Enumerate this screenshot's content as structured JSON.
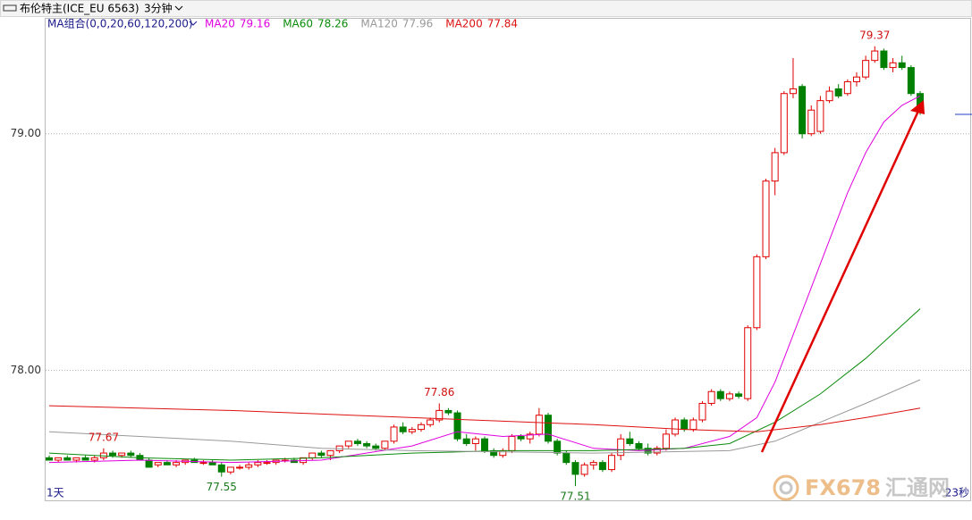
{
  "chart_data": {
    "type": "candlestick",
    "title": "布伦特主(ICE_EU 6563)",
    "period": "3分钟",
    "indicator": "MA组合(0,0,20,60,120,200)",
    "x_start_label": "1天",
    "x_end_label": "23秒",
    "watermark": "FX678",
    "watermark_cn": "汇通网",
    "up_color": "#e00000",
    "down_color": "#008000",
    "grid": true,
    "ylim": [
      77.45,
      79.49
    ],
    "yticks": [
      {
        "value": 78,
        "label": "78.00"
      },
      {
        "value": 79,
        "label": "79.00"
      }
    ],
    "open": [
      77.63,
      77.62,
      77.63,
      77.62,
      77.63,
      77.62,
      77.63,
      77.65,
      77.64,
      77.65,
      77.64,
      77.62,
      77.6,
      77.61,
      77.6,
      77.61,
      77.62,
      77.61,
      77.61,
      77.6,
      77.57,
      77.59,
      77.59,
      77.6,
      77.61,
      77.61,
      77.62,
      77.62,
      77.61,
      77.63,
      77.65,
      77.64,
      77.66,
      77.68,
      77.7,
      77.69,
      77.68,
      77.67,
      77.7,
      77.76,
      77.74,
      77.75,
      77.77,
      77.79,
      77.83,
      77.82,
      77.71,
      77.69,
      77.71,
      77.66,
      77.64,
      77.66,
      77.72,
      77.71,
      77.73,
      77.81,
      77.7,
      77.65,
      77.61,
      77.56,
      77.6,
      77.61,
      77.58,
      77.64,
      77.71,
      77.69,
      77.67,
      77.65,
      77.67,
      77.73,
      77.79,
      77.75,
      77.79,
      77.86,
      77.91,
      77.88,
      77.9,
      77.88,
      78.18,
      78.48,
      78.8,
      78.92,
      79.17,
      79.2,
      79.0,
      79.01,
      79.14,
      79.19,
      79.17,
      79.22,
      79.24,
      79.31,
      79.35,
      79.28,
      79.3,
      79.28,
      79.17
    ],
    "high": [
      77.64,
      77.63,
      77.64,
      77.63,
      77.64,
      77.64,
      77.67,
      77.66,
      77.65,
      77.66,
      77.65,
      77.63,
      77.61,
      77.62,
      77.62,
      77.62,
      77.63,
      77.62,
      77.62,
      77.61,
      77.59,
      77.6,
      77.61,
      77.62,
      77.62,
      77.62,
      77.63,
      77.63,
      77.63,
      77.65,
      77.66,
      77.66,
      77.68,
      77.7,
      77.71,
      77.7,
      77.69,
      77.7,
      77.77,
      77.78,
      77.76,
      77.78,
      77.8,
      77.86,
      77.84,
      77.83,
      77.73,
      77.72,
      77.72,
      77.67,
      77.67,
      77.73,
      77.73,
      77.74,
      77.84,
      77.82,
      77.71,
      77.66,
      77.62,
      77.61,
      77.62,
      77.62,
      77.65,
      77.73,
      77.74,
      77.7,
      77.69,
      77.68,
      77.75,
      77.8,
      77.8,
      77.8,
      77.87,
      77.92,
      77.92,
      77.91,
      77.91,
      78.19,
      78.49,
      78.81,
      78.94,
      79.18,
      79.32,
      79.21,
      79.12,
      79.16,
      79.2,
      79.21,
      79.23,
      79.26,
      79.33,
      79.37,
      79.36,
      79.32,
      79.33,
      79.29,
      79.18
    ],
    "low": [
      77.62,
      77.61,
      77.62,
      77.61,
      77.62,
      77.61,
      77.62,
      77.63,
      77.63,
      77.63,
      77.62,
      77.59,
      77.59,
      77.6,
      77.59,
      77.6,
      77.61,
      77.6,
      77.6,
      77.55,
      77.56,
      77.58,
      77.58,
      77.59,
      77.6,
      77.6,
      77.61,
      77.61,
      77.6,
      77.62,
      77.63,
      77.62,
      77.65,
      77.67,
      77.68,
      77.67,
      77.66,
      77.66,
      77.69,
      77.73,
      77.73,
      77.74,
      77.76,
      77.78,
      77.81,
      77.7,
      77.68,
      77.66,
      77.65,
      77.63,
      77.63,
      77.65,
      77.7,
      77.69,
      77.72,
      77.69,
      77.64,
      77.6,
      77.51,
      77.55,
      77.58,
      77.57,
      77.57,
      77.62,
      77.68,
      77.66,
      77.64,
      77.64,
      77.66,
      77.72,
      77.74,
      77.74,
      77.78,
      77.85,
      77.87,
      77.87,
      77.88,
      77.87,
      78.17,
      78.47,
      78.74,
      78.91,
      79.15,
      78.98,
      78.99,
      79.0,
      79.13,
      79.15,
      79.16,
      79.2,
      79.23,
      79.3,
      79.27,
      79.26,
      79.27,
      79.16,
      79.08
    ],
    "close": [
      77.62,
      77.63,
      77.62,
      77.63,
      77.62,
      77.63,
      77.65,
      77.64,
      77.65,
      77.64,
      77.62,
      77.59,
      77.61,
      77.6,
      77.61,
      77.62,
      77.61,
      77.61,
      77.6,
      77.57,
      77.59,
      77.59,
      77.6,
      77.61,
      77.61,
      77.62,
      77.62,
      77.61,
      77.63,
      77.65,
      77.64,
      77.66,
      77.68,
      77.7,
      77.69,
      77.68,
      77.67,
      77.7,
      77.76,
      77.74,
      77.75,
      77.77,
      77.79,
      77.83,
      77.82,
      77.71,
      77.69,
      77.71,
      77.66,
      77.64,
      77.66,
      77.72,
      77.71,
      77.73,
      77.81,
      77.7,
      77.65,
      77.61,
      77.56,
      77.6,
      77.61,
      77.58,
      77.64,
      77.71,
      77.69,
      77.67,
      77.65,
      77.67,
      77.73,
      77.79,
      77.75,
      77.79,
      77.86,
      77.91,
      77.88,
      77.9,
      77.89,
      78.18,
      78.48,
      78.8,
      78.92,
      79.17,
      79.19,
      79.0,
      79.1,
      79.14,
      79.18,
      79.16,
      79.22,
      79.24,
      79.31,
      79.35,
      79.28,
      79.3,
      79.28,
      79.17,
      79.1
    ],
    "annotations": [
      {
        "x": 91,
        "y": 79.37
      },
      {
        "x": 43,
        "y": 77.86
      },
      {
        "x": 6,
        "y": 77.67
      },
      {
        "x": 19,
        "y": 77.55
      },
      {
        "x": 58,
        "y": 77.51
      }
    ],
    "series": [
      {
        "name": "MA20",
        "last": 79.16,
        "color": "#e000e0",
        "x": [
          0,
          10,
          20,
          30,
          40,
          45,
          50,
          55,
          60,
          65,
          70,
          75,
          78,
          80,
          82,
          84,
          86,
          88,
          90,
          92,
          94,
          96
        ],
        "values": [
          77.61,
          77.62,
          77.61,
          77.62,
          77.68,
          77.74,
          77.72,
          77.73,
          77.67,
          77.66,
          77.67,
          77.72,
          77.8,
          77.95,
          78.15,
          78.35,
          78.55,
          78.75,
          78.92,
          79.05,
          79.12,
          79.16
        ]
      },
      {
        "name": "MA60",
        "last": 78.26,
        "color": "#0a8a0a",
        "x": [
          0,
          10,
          20,
          30,
          40,
          50,
          60,
          70,
          75,
          80,
          85,
          90,
          96
        ],
        "values": [
          77.65,
          77.63,
          77.62,
          77.63,
          77.65,
          77.66,
          77.66,
          77.67,
          77.69,
          77.78,
          77.9,
          78.05,
          78.26
        ]
      },
      {
        "name": "MA120",
        "last": 77.96,
        "color": "#999999",
        "x": [
          0,
          10,
          20,
          30,
          40,
          60,
          75,
          80,
          85,
          90,
          96
        ],
        "values": [
          77.74,
          77.72,
          77.7,
          77.67,
          77.66,
          77.65,
          77.66,
          77.7,
          77.78,
          77.86,
          77.96
        ]
      },
      {
        "name": "MA200",
        "last": 77.84,
        "color": "#dd1111",
        "x": [
          0,
          20,
          40,
          60,
          70,
          78,
          85,
          90,
          96
        ],
        "values": [
          77.85,
          77.83,
          77.8,
          77.77,
          77.75,
          77.74,
          77.77,
          77.8,
          77.84
        ]
      }
    ]
  }
}
